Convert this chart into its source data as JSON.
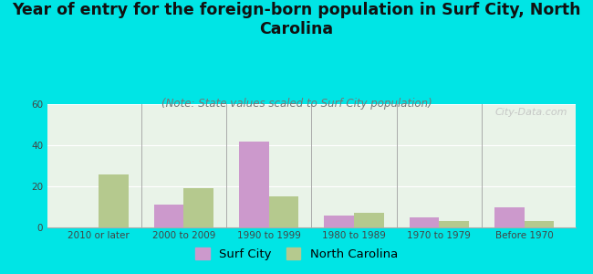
{
  "title": "Year of entry for the foreign-born population in Surf City, North\nCarolina",
  "subtitle": "(Note: State values scaled to Surf City population)",
  "categories": [
    "2010 or later",
    "2000 to 2009",
    "1990 to 1999",
    "1980 to 1989",
    "1970 to 1979",
    "Before 1970"
  ],
  "surf_city_values": [
    0,
    11,
    42,
    6,
    5,
    10
  ],
  "north_carolina_values": [
    26,
    19,
    15,
    7,
    3,
    3
  ],
  "surf_city_color": "#cc99cc",
  "north_carolina_color": "#b5c98e",
  "background_color": "#00e5e5",
  "plot_bg": "#deeedd",
  "ylim": [
    0,
    60
  ],
  "yticks": [
    0,
    20,
    40,
    60
  ],
  "bar_width": 0.35,
  "title_fontsize": 12.5,
  "subtitle_fontsize": 8.5,
  "tick_fontsize": 7.5,
  "legend_fontsize": 9.5,
  "watermark": "City-Data.com"
}
